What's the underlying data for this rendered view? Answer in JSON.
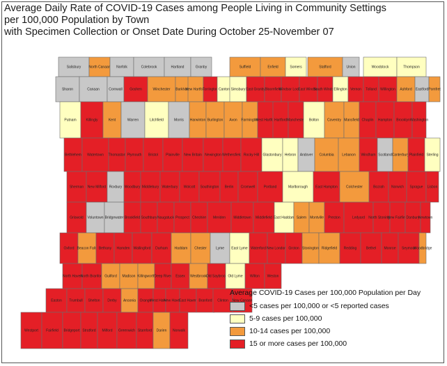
{
  "title_lines": [
    "Average Daily Rate of COVID-19 Cases among People Living in Community Settings",
    "per 100,000 Population by Town",
    "with Specimen Collection or Onset Date During October 25-November 07"
  ],
  "colors": {
    "gray": "#c8c8c8",
    "yellow": "#ffffc0",
    "orange": "#f39a3d",
    "red": "#e41f26",
    "border": "#6d6d6d"
  },
  "legend": {
    "title": "Average COVID-19 Cases per 100,000 Population per Day",
    "items": [
      {
        "category": "gray",
        "label": "<5 cases per 100,000 or <5 reported cases"
      },
      {
        "category": "yellow",
        "label": "5-9 cases per 100,000"
      },
      {
        "category": "orange",
        "label": "10-14 cases per 100,000"
      },
      {
        "category": "red",
        "label": "15 or more cases per 100,000"
      }
    ]
  },
  "towns": [
    {
      "name": "Salisbury",
      "category": "gray"
    },
    {
      "name": "North Canaan",
      "category": "orange"
    },
    {
      "name": "Norfolk",
      "category": "gray"
    },
    {
      "name": "Colebrook",
      "category": "gray"
    },
    {
      "name": "Hartland",
      "category": "gray"
    },
    {
      "name": "Granby",
      "category": "gray"
    },
    {
      "name": "Suffield",
      "category": "orange"
    },
    {
      "name": "Enfield",
      "category": "orange"
    },
    {
      "name": "Somers",
      "category": "yellow"
    },
    {
      "name": "Stafford",
      "category": "orange"
    },
    {
      "name": "Union",
      "category": "gray"
    },
    {
      "name": "Woodstock",
      "category": "yellow"
    },
    {
      "name": "Thompson",
      "category": "yellow"
    },
    {
      "name": "Sharon",
      "category": "gray"
    },
    {
      "name": "Canaan",
      "category": "gray"
    },
    {
      "name": "Cornwall",
      "category": "gray"
    },
    {
      "name": "Goshen",
      "category": "red"
    },
    {
      "name": "Winchester",
      "category": "orange"
    },
    {
      "name": "Barkhamsted",
      "category": "orange"
    },
    {
      "name": "New Hartford",
      "category": "orange"
    },
    {
      "name": "Torrington",
      "category": "red"
    },
    {
      "name": "Canton",
      "category": "yellow"
    },
    {
      "name": "Simsbury",
      "category": "yellow"
    },
    {
      "name": "East Granby",
      "category": "red"
    },
    {
      "name": "Bloomfield",
      "category": "red"
    },
    {
      "name": "Windsor Locks",
      "category": "red"
    },
    {
      "name": "East Windsor",
      "category": "red"
    },
    {
      "name": "South Windsor",
      "category": "red"
    },
    {
      "name": "Ellington",
      "category": "yellow"
    },
    {
      "name": "Vernon",
      "category": "red"
    },
    {
      "name": "Tolland",
      "category": "red"
    },
    {
      "name": "Willington",
      "category": "red"
    },
    {
      "name": "Ashford",
      "category": "orange"
    },
    {
      "name": "Eastford",
      "category": "gray"
    },
    {
      "name": "Pomfret",
      "category": "orange"
    },
    {
      "name": "Putnam",
      "category": "yellow"
    },
    {
      "name": "Killingly",
      "category": "red"
    },
    {
      "name": "Kent",
      "category": "orange"
    },
    {
      "name": "Warren",
      "category": "gray"
    },
    {
      "name": "Litchfield",
      "category": "yellow"
    },
    {
      "name": "Morris",
      "category": "gray"
    },
    {
      "name": "Harwinton",
      "category": "orange"
    },
    {
      "name": "Burlington",
      "category": "orange"
    },
    {
      "name": "Avon",
      "category": "orange"
    },
    {
      "name": "Farmington",
      "category": "orange"
    },
    {
      "name": "West Hartford",
      "category": "red"
    },
    {
      "name": "Hartford",
      "category": "red"
    },
    {
      "name": "Manchester",
      "category": "red"
    },
    {
      "name": "Bolton",
      "category": "yellow"
    },
    {
      "name": "Coventry",
      "category": "orange"
    },
    {
      "name": "Mansfield",
      "category": "orange"
    },
    {
      "name": "Chaplin",
      "category": "red"
    },
    {
      "name": "Hampton",
      "category": "red"
    },
    {
      "name": "Brooklyn",
      "category": "red"
    },
    {
      "name": "Washington",
      "category": "red"
    },
    {
      "name": "Bethlehem",
      "category": "red"
    },
    {
      "name": "Watertown",
      "category": "red"
    },
    {
      "name": "Thomaston",
      "category": "red"
    },
    {
      "name": "Plymouth",
      "category": "red"
    },
    {
      "name": "Bristol",
      "category": "red"
    },
    {
      "name": "Plainville",
      "category": "red"
    },
    {
      "name": "New Britain",
      "category": "red"
    },
    {
      "name": "Newington",
      "category": "red"
    },
    {
      "name": "Wethersfield",
      "category": "red"
    },
    {
      "name": "Rocky Hill",
      "category": "red"
    },
    {
      "name": "Glastonbury",
      "category": "yellow"
    },
    {
      "name": "Hebron",
      "category": "yellow"
    },
    {
      "name": "Andover",
      "category": "gray"
    },
    {
      "name": "Columbia",
      "category": "orange"
    },
    {
      "name": "Lebanon",
      "category": "orange"
    },
    {
      "name": "Windham",
      "category": "red"
    },
    {
      "name": "Scotland",
      "category": "gray"
    },
    {
      "name": "Canterbury",
      "category": "orange"
    },
    {
      "name": "Plainfield",
      "category": "red"
    },
    {
      "name": "Sterling",
      "category": "yellow"
    },
    {
      "name": "Sherman",
      "category": "red"
    },
    {
      "name": "New Milford",
      "category": "red"
    },
    {
      "name": "Roxbury",
      "category": "gray"
    },
    {
      "name": "Woodbury",
      "category": "red"
    },
    {
      "name": "Middlebury",
      "category": "red"
    },
    {
      "name": "Waterbury",
      "category": "red"
    },
    {
      "name": "Wolcott",
      "category": "red"
    },
    {
      "name": "Southington",
      "category": "red"
    },
    {
      "name": "Berlin",
      "category": "red"
    },
    {
      "name": "Cromwell",
      "category": "red"
    },
    {
      "name": "Portland",
      "category": "red"
    },
    {
      "name": "Marlborough",
      "category": "yellow"
    },
    {
      "name": "East Hampton",
      "category": "red"
    },
    {
      "name": "Colchester",
      "category": "orange"
    },
    {
      "name": "Bozrah",
      "category": "red"
    },
    {
      "name": "Norwich",
      "category": "red"
    },
    {
      "name": "Sprague",
      "category": "red"
    },
    {
      "name": "Lisbon",
      "category": "red"
    },
    {
      "name": "Griswold",
      "category": "red"
    },
    {
      "name": "Voluntown",
      "category": "gray"
    },
    {
      "name": "Bridgewater",
      "category": "gray"
    },
    {
      "name": "Brookfield",
      "category": "red"
    },
    {
      "name": "Southbury",
      "category": "red"
    },
    {
      "name": "Naugatuck",
      "category": "red"
    },
    {
      "name": "Prospect",
      "category": "red"
    },
    {
      "name": "Cheshire",
      "category": "red"
    },
    {
      "name": "Meriden",
      "category": "red"
    },
    {
      "name": "Middletown",
      "category": "red"
    },
    {
      "name": "Middlefield",
      "category": "red"
    },
    {
      "name": "East Haddam",
      "category": "yellow"
    },
    {
      "name": "Salem",
      "category": "orange"
    },
    {
      "name": "Montville",
      "category": "orange"
    },
    {
      "name": "Preston",
      "category": "red"
    },
    {
      "name": "Ledyard",
      "category": "red"
    },
    {
      "name": "North Stonington",
      "category": "red"
    },
    {
      "name": "New Fairfield",
      "category": "red"
    },
    {
      "name": "Danbury",
      "category": "red"
    },
    {
      "name": "Newtown",
      "category": "red"
    },
    {
      "name": "Oxford",
      "category": "red"
    },
    {
      "name": "Beacon Falls",
      "category": "orange"
    },
    {
      "name": "Bethany",
      "category": "red"
    },
    {
      "name": "Hamden",
      "category": "red"
    },
    {
      "name": "Wallingford",
      "category": "red"
    },
    {
      "name": "Durham",
      "category": "red"
    },
    {
      "name": "Haddam",
      "category": "orange"
    },
    {
      "name": "Chester",
      "category": "orange"
    },
    {
      "name": "Lyme",
      "category": "gray"
    },
    {
      "name": "East Lyme",
      "category": "yellow"
    },
    {
      "name": "Waterford",
      "category": "red"
    },
    {
      "name": "New London",
      "category": "red"
    },
    {
      "name": "Groton",
      "category": "red"
    },
    {
      "name": "Stonington",
      "category": "orange"
    },
    {
      "name": "Ridgefield",
      "category": "orange"
    },
    {
      "name": "Redding",
      "category": "red"
    },
    {
      "name": "Bethel",
      "category": "red"
    },
    {
      "name": "Monroe",
      "category": "red"
    },
    {
      "name": "Seymour",
      "category": "red"
    },
    {
      "name": "Woodbridge",
      "category": "orange"
    },
    {
      "name": "North Haven",
      "category": "red"
    },
    {
      "name": "North Branford",
      "category": "red"
    },
    {
      "name": "Guilford",
      "category": "orange"
    },
    {
      "name": "Madison",
      "category": "orange"
    },
    {
      "name": "Killingworth",
      "category": "orange"
    },
    {
      "name": "Deep River",
      "category": "red"
    },
    {
      "name": "Essex",
      "category": "red"
    },
    {
      "name": "Westbrook",
      "category": "orange"
    },
    {
      "name": "Old Saybrook",
      "category": "red"
    },
    {
      "name": "Old Lyme",
      "category": "yellow"
    },
    {
      "name": "Wilton",
      "category": "red"
    },
    {
      "name": "Weston",
      "category": "red"
    },
    {
      "name": "Easton",
      "category": "red"
    },
    {
      "name": "Trumbull",
      "category": "red"
    },
    {
      "name": "Shelton",
      "category": "red"
    },
    {
      "name": "Derby",
      "category": "red"
    },
    {
      "name": "Ansonia",
      "category": "orange"
    },
    {
      "name": "Orange",
      "category": "red"
    },
    {
      "name": "West Haven",
      "category": "red"
    },
    {
      "name": "New Haven",
      "category": "red"
    },
    {
      "name": "East Haven",
      "category": "red"
    },
    {
      "name": "Branford",
      "category": "red"
    },
    {
      "name": "Clinton",
      "category": "red"
    },
    {
      "name": "New Canaan",
      "category": "red"
    },
    {
      "name": "Westport",
      "category": "red"
    },
    {
      "name": "Fairfield",
      "category": "red"
    },
    {
      "name": "Bridgeport",
      "category": "red"
    },
    {
      "name": "Stratford",
      "category": "red"
    },
    {
      "name": "Milford",
      "category": "red"
    },
    {
      "name": "Greenwich",
      "category": "red"
    },
    {
      "name": "Stamford",
      "category": "red"
    },
    {
      "name": "Darien",
      "category": "orange"
    },
    {
      "name": "Norwalk",
      "category": "red"
    }
  ]
}
